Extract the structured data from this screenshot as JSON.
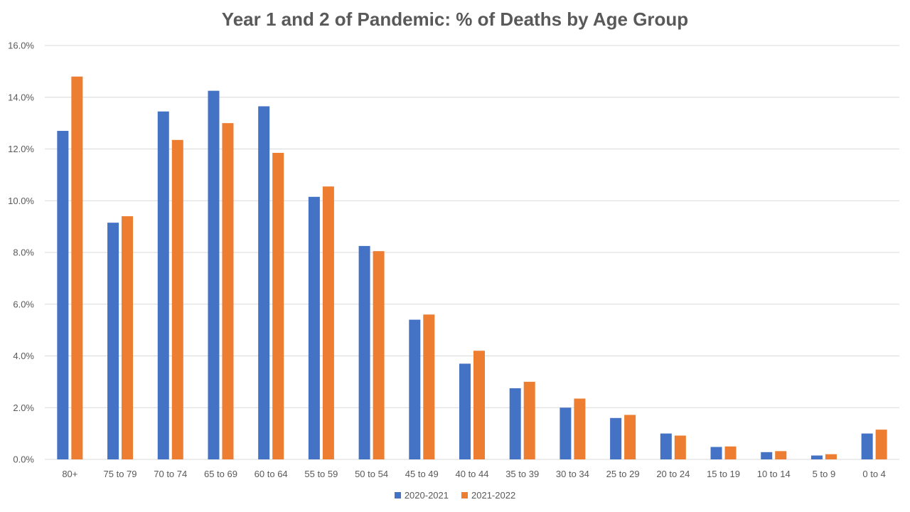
{
  "chart_data": {
    "type": "bar",
    "title": "Year 1 and 2 of Pandemic: % of Deaths by Age Group",
    "xlabel": "",
    "ylabel": "",
    "ylim": [
      0,
      16
    ],
    "yticks": [
      "0.0%",
      "2.0%",
      "4.0%",
      "6.0%",
      "8.0%",
      "10.0%",
      "12.0%",
      "14.0%",
      "16.0%"
    ],
    "grid": true,
    "legend_position": "bottom",
    "categories": [
      "80+",
      "75 to 79",
      "70 to 74",
      "65 to 69",
      "60 to 64",
      "55 to 59",
      "50 to 54",
      "45 to 49",
      "40 to 44",
      "35 to 39",
      "30 to 34",
      "25 to 29",
      "20 to 24",
      "15 to 19",
      "10 to 14",
      "5 to 9",
      "0 to 4"
    ],
    "series": [
      {
        "name": "2020-2021",
        "color": "#4472C4",
        "values": [
          12.7,
          9.15,
          13.45,
          14.25,
          13.65,
          10.15,
          8.25,
          5.4,
          3.7,
          2.75,
          2.0,
          1.6,
          1.0,
          0.48,
          0.28,
          0.15,
          1.0
        ]
      },
      {
        "name": "2021-2022",
        "color": "#ED7D31",
        "values": [
          14.8,
          9.4,
          12.35,
          13.0,
          11.85,
          10.55,
          8.05,
          5.6,
          4.2,
          3.0,
          2.35,
          1.72,
          0.92,
          0.5,
          0.32,
          0.2,
          1.15
        ]
      }
    ]
  }
}
